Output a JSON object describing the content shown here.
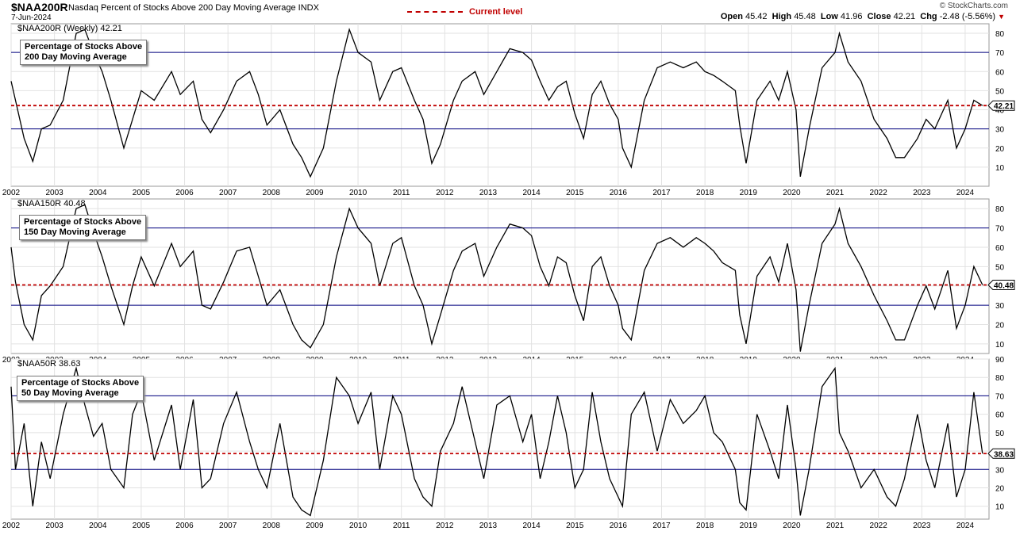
{
  "header": {
    "symbol": "$NAA200R",
    "description": "Nasdaq Percent of Stocks Above 200 Day Moving Average INDX",
    "date": "7-Jun-2024",
    "copyright": "© StockCharts.com",
    "legend_label": "Current level",
    "open_label": "Open",
    "open": "45.42",
    "high_label": "High",
    "high": "45.48",
    "low_label": "Low",
    "low": "41.96",
    "close_label": "Close",
    "close": "42.21",
    "chg_label": "Chg",
    "chg": "-2.48 (-5.56%)"
  },
  "colors": {
    "series": "#000000",
    "current_level": "#c00000",
    "reference_lines": "#000080",
    "grid": "#e2e2e2"
  },
  "chart_data": [
    {
      "type": "line",
      "label": "$NAA200R (Weekly) 42.21",
      "box": [
        "Percentage of Stocks Above",
        "200 Day Moving Average"
      ],
      "ylim": [
        0,
        85
      ],
      "yticks": [
        10,
        20,
        30,
        40,
        50,
        60,
        70,
        80
      ],
      "reference_lines": [
        30,
        70
      ],
      "current_level": 42.21,
      "current_label": "42.21",
      "x": [
        2002.0,
        2002.1,
        2002.3,
        2002.5,
        2002.7,
        2002.9,
        2003.2,
        2003.5,
        2003.7,
        2003.9,
        2004.1,
        2004.3,
        2004.6,
        2004.8,
        2005.0,
        2005.3,
        2005.7,
        2005.9,
        2006.2,
        2006.4,
        2006.6,
        2006.9,
        2007.2,
        2007.5,
        2007.7,
        2007.9,
        2008.2,
        2008.5,
        2008.7,
        2008.9,
        2009.2,
        2009.5,
        2009.8,
        2010.0,
        2010.3,
        2010.5,
        2010.8,
        2011.0,
        2011.3,
        2011.5,
        2011.7,
        2011.9,
        2012.2,
        2012.4,
        2012.7,
        2012.9,
        2013.2,
        2013.5,
        2013.8,
        2014.0,
        2014.2,
        2014.4,
        2014.6,
        2014.8,
        2015.0,
        2015.2,
        2015.4,
        2015.6,
        2015.8,
        2016.0,
        2016.1,
        2016.3,
        2016.6,
        2016.9,
        2017.2,
        2017.5,
        2017.8,
        2018.0,
        2018.2,
        2018.4,
        2018.7,
        2018.8,
        2018.95,
        2019.2,
        2019.5,
        2019.7,
        2019.9,
        2020.1,
        2020.2,
        2020.4,
        2020.7,
        2021.0,
        2021.1,
        2021.3,
        2021.6,
        2021.9,
        2022.2,
        2022.4,
        2022.6,
        2022.9,
        2023.1,
        2023.3,
        2023.6,
        2023.8,
        2024.0,
        2024.2,
        2024.4
      ],
      "y": [
        55,
        45,
        25,
        13,
        30,
        32,
        45,
        80,
        82,
        70,
        60,
        45,
        20,
        35,
        50,
        45,
        60,
        48,
        55,
        35,
        28,
        40,
        55,
        60,
        48,
        32,
        40,
        22,
        15,
        5,
        20,
        55,
        82,
        70,
        65,
        45,
        60,
        62,
        45,
        35,
        12,
        22,
        45,
        55,
        60,
        48,
        60,
        72,
        70,
        66,
        55,
        45,
        52,
        55,
        38,
        25,
        48,
        55,
        43,
        35,
        20,
        10,
        45,
        62,
        65,
        62,
        65,
        60,
        58,
        55,
        50,
        32,
        12,
        45,
        55,
        45,
        60,
        40,
        5,
        30,
        62,
        70,
        80,
        65,
        55,
        35,
        25,
        15,
        15,
        25,
        35,
        30,
        45,
        20,
        30,
        45,
        42.21
      ]
    },
    {
      "type": "line",
      "label": "$NAA150R 40.48",
      "box": [
        "Percentage of Stocks Above",
        "150 Day Moving Average"
      ],
      "ylim": [
        5,
        85
      ],
      "yticks": [
        10,
        20,
        30,
        40,
        50,
        60,
        70,
        80
      ],
      "reference_lines": [
        30,
        70
      ],
      "current_level": 40.48,
      "current_label": "40.48",
      "x": [
        2002.0,
        2002.1,
        2002.3,
        2002.5,
        2002.7,
        2002.9,
        2003.2,
        2003.5,
        2003.7,
        2003.9,
        2004.1,
        2004.3,
        2004.6,
        2004.8,
        2005.0,
        2005.3,
        2005.7,
        2005.9,
        2006.2,
        2006.4,
        2006.6,
        2006.9,
        2007.2,
        2007.5,
        2007.7,
        2007.9,
        2008.2,
        2008.5,
        2008.7,
        2008.9,
        2009.2,
        2009.5,
        2009.8,
        2010.0,
        2010.3,
        2010.5,
        2010.8,
        2011.0,
        2011.3,
        2011.5,
        2011.7,
        2011.9,
        2012.2,
        2012.4,
        2012.7,
        2012.9,
        2013.2,
        2013.5,
        2013.8,
        2014.0,
        2014.2,
        2014.4,
        2014.6,
        2014.8,
        2015.0,
        2015.2,
        2015.4,
        2015.6,
        2015.8,
        2016.0,
        2016.1,
        2016.3,
        2016.6,
        2016.9,
        2017.2,
        2017.5,
        2017.8,
        2018.0,
        2018.2,
        2018.4,
        2018.7,
        2018.8,
        2018.95,
        2019.2,
        2019.5,
        2019.7,
        2019.9,
        2020.1,
        2020.2,
        2020.4,
        2020.7,
        2021.0,
        2021.1,
        2021.3,
        2021.6,
        2021.9,
        2022.2,
        2022.4,
        2022.6,
        2022.9,
        2023.1,
        2023.3,
        2023.6,
        2023.8,
        2024.0,
        2024.2,
        2024.4
      ],
      "y": [
        60,
        42,
        20,
        12,
        35,
        40,
        50,
        80,
        82,
        68,
        55,
        40,
        20,
        40,
        55,
        40,
        62,
        50,
        58,
        30,
        28,
        42,
        58,
        60,
        45,
        30,
        38,
        20,
        12,
        8,
        20,
        55,
        80,
        70,
        62,
        40,
        62,
        65,
        40,
        30,
        10,
        25,
        48,
        58,
        62,
        45,
        60,
        72,
        70,
        66,
        50,
        40,
        55,
        52,
        35,
        22,
        50,
        55,
        40,
        30,
        18,
        12,
        48,
        62,
        65,
        60,
        65,
        62,
        58,
        52,
        48,
        25,
        10,
        45,
        55,
        42,
        62,
        38,
        6,
        30,
        62,
        72,
        80,
        62,
        50,
        35,
        22,
        12,
        12,
        30,
        40,
        28,
        48,
        18,
        30,
        50,
        40.48
      ]
    },
    {
      "type": "line",
      "label": "$NAA50R 38.63",
      "box": [
        "Percentage of Stocks Above",
        "50 Day Moving Average"
      ],
      "ylim": [
        3,
        90
      ],
      "yticks": [
        10,
        20,
        30,
        40,
        50,
        60,
        70,
        80,
        90
      ],
      "reference_lines": [
        30,
        70
      ],
      "current_level": 38.63,
      "current_label": "38.63",
      "x": [
        2002.0,
        2002.1,
        2002.3,
        2002.5,
        2002.7,
        2002.9,
        2003.2,
        2003.5,
        2003.7,
        2003.9,
        2004.1,
        2004.3,
        2004.6,
        2004.8,
        2005.0,
        2005.3,
        2005.7,
        2005.9,
        2006.2,
        2006.4,
        2006.6,
        2006.9,
        2007.2,
        2007.5,
        2007.7,
        2007.9,
        2008.2,
        2008.5,
        2008.7,
        2008.9,
        2009.2,
        2009.5,
        2009.8,
        2010.0,
        2010.3,
        2010.5,
        2010.8,
        2011.0,
        2011.3,
        2011.5,
        2011.7,
        2011.9,
        2012.2,
        2012.4,
        2012.7,
        2012.9,
        2013.2,
        2013.5,
        2013.8,
        2014.0,
        2014.2,
        2014.4,
        2014.6,
        2014.8,
        2015.0,
        2015.2,
        2015.4,
        2015.6,
        2015.8,
        2016.0,
        2016.1,
        2016.3,
        2016.6,
        2016.9,
        2017.2,
        2017.5,
        2017.8,
        2018.0,
        2018.2,
        2018.4,
        2018.7,
        2018.8,
        2018.95,
        2019.2,
        2019.5,
        2019.7,
        2019.9,
        2020.1,
        2020.2,
        2020.4,
        2020.7,
        2021.0,
        2021.1,
        2021.3,
        2021.6,
        2021.9,
        2022.2,
        2022.4,
        2022.6,
        2022.9,
        2023.1,
        2023.3,
        2023.6,
        2023.8,
        2024.0,
        2024.2,
        2024.4
      ],
      "y": [
        75,
        30,
        55,
        10,
        45,
        25,
        60,
        85,
        65,
        48,
        55,
        30,
        20,
        60,
        72,
        35,
        65,
        30,
        68,
        20,
        25,
        55,
        72,
        45,
        30,
        20,
        55,
        15,
        8,
        5,
        35,
        80,
        70,
        55,
        72,
        30,
        70,
        60,
        25,
        15,
        10,
        40,
        55,
        75,
        45,
        25,
        65,
        70,
        45,
        60,
        25,
        45,
        70,
        50,
        20,
        30,
        72,
        45,
        25,
        15,
        10,
        60,
        72,
        40,
        68,
        55,
        62,
        70,
        50,
        45,
        30,
        12,
        8,
        60,
        40,
        25,
        65,
        30,
        5,
        30,
        75,
        85,
        50,
        40,
        20,
        30,
        15,
        10,
        25,
        60,
        35,
        20,
        55,
        15,
        30,
        72,
        38.63
      ]
    }
  ],
  "x_axis": {
    "years": [
      "2002",
      "2003",
      "2004",
      "2005",
      "2006",
      "2007",
      "2008",
      "2009",
      "2010",
      "2011",
      "2012",
      "2013",
      "2014",
      "2015",
      "2016",
      "2017",
      "2018",
      "2019",
      "2020",
      "2021",
      "2022",
      "2023",
      "2024"
    ]
  }
}
